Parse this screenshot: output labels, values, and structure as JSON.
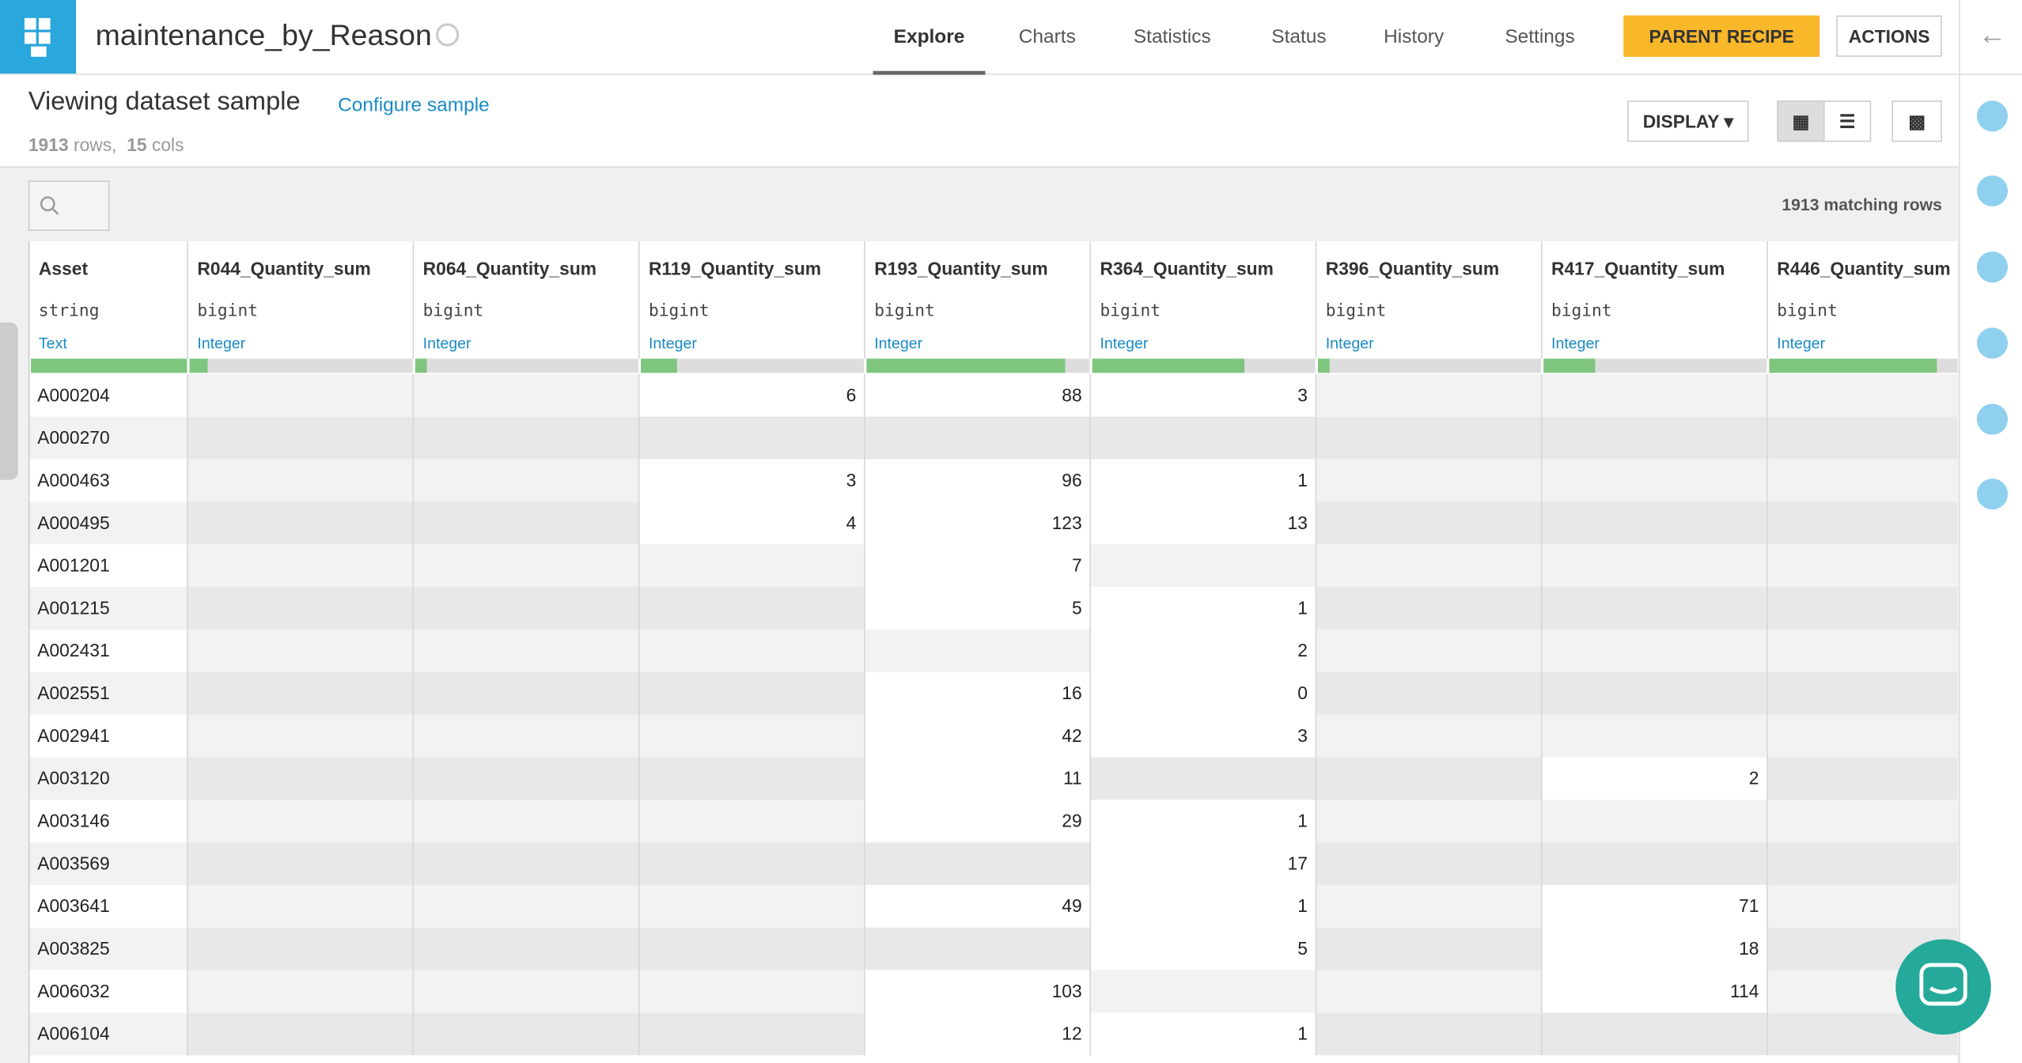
{
  "header": {
    "title": "maintenance_by_Reason",
    "tabs": [
      "Explore",
      "Charts",
      "Statistics",
      "Status",
      "History",
      "Settings"
    ],
    "active_tab": 0,
    "parent_recipe": "PARENT RECIPE",
    "actions": "ACTIONS"
  },
  "sample": {
    "title": "Viewing dataset sample",
    "configure": "Configure sample",
    "rows": "1913",
    "rows_label": "rows,",
    "cols": "15",
    "cols_label": "cols",
    "display": "DISPLAY",
    "matching": "1913 matching rows"
  },
  "table": {
    "columns": [
      {
        "name": "Asset",
        "type": "string",
        "meaning": "Text",
        "completeness": 1.0
      },
      {
        "name": "R044_Quantity_sum",
        "type": "bigint",
        "meaning": "Integer",
        "completeness": 0.08
      },
      {
        "name": "R064_Quantity_sum",
        "type": "bigint",
        "meaning": "Integer",
        "completeness": 0.05
      },
      {
        "name": "R119_Quantity_sum",
        "type": "bigint",
        "meaning": "Integer",
        "completeness": 0.16
      },
      {
        "name": "R193_Quantity_sum",
        "type": "bigint",
        "meaning": "Integer",
        "completeness": 0.89
      },
      {
        "name": "R364_Quantity_sum",
        "type": "bigint",
        "meaning": "Integer",
        "completeness": 0.68
      },
      {
        "name": "R396_Quantity_sum",
        "type": "bigint",
        "meaning": "Integer",
        "completeness": 0.05
      },
      {
        "name": "R417_Quantity_sum",
        "type": "bigint",
        "meaning": "Integer",
        "completeness": 0.23
      },
      {
        "name": "R446_Quantity_sum",
        "type": "bigint",
        "meaning": "Integer",
        "completeness": 0.75
      }
    ],
    "rows": [
      [
        "A000204",
        null,
        null,
        6,
        88,
        3,
        null,
        null,
        null
      ],
      [
        "A000270",
        null,
        null,
        null,
        null,
        null,
        null,
        null,
        null
      ],
      [
        "A000463",
        null,
        null,
        3,
        96,
        1,
        null,
        null,
        null
      ],
      [
        "A000495",
        null,
        null,
        4,
        123,
        13,
        null,
        null,
        null
      ],
      [
        "A001201",
        null,
        null,
        null,
        7,
        null,
        null,
        null,
        null
      ],
      [
        "A001215",
        null,
        null,
        null,
        5,
        1,
        null,
        null,
        null
      ],
      [
        "A002431",
        null,
        null,
        null,
        null,
        2,
        null,
        null,
        null
      ],
      [
        "A002551",
        null,
        null,
        null,
        16,
        0,
        null,
        null,
        null
      ],
      [
        "A002941",
        null,
        null,
        null,
        42,
        3,
        null,
        null,
        null
      ],
      [
        "A003120",
        null,
        null,
        null,
        11,
        null,
        null,
        2,
        null
      ],
      [
        "A003146",
        null,
        null,
        null,
        29,
        1,
        null,
        null,
        null
      ],
      [
        "A003569",
        null,
        null,
        null,
        null,
        17,
        null,
        null,
        null
      ],
      [
        "A003641",
        null,
        null,
        null,
        49,
        1,
        null,
        71,
        null
      ],
      [
        "A003825",
        null,
        null,
        null,
        null,
        5,
        null,
        18,
        null
      ],
      [
        "A006032",
        null,
        null,
        null,
        103,
        null,
        null,
        114,
        null
      ],
      [
        "A006104",
        null,
        null,
        null,
        12,
        1,
        null,
        null,
        null
      ]
    ]
  }
}
